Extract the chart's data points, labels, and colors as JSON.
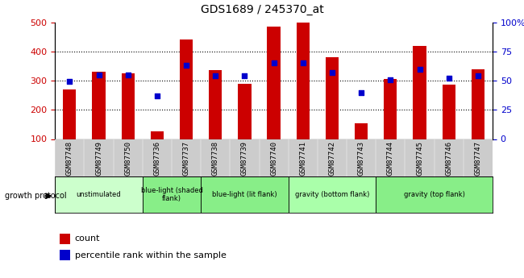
{
  "title": "GDS1689 / 245370_at",
  "samples": [
    "GSM87748",
    "GSM87749",
    "GSM87750",
    "GSM87736",
    "GSM87737",
    "GSM87738",
    "GSM87739",
    "GSM87740",
    "GSM87741",
    "GSM87742",
    "GSM87743",
    "GSM87744",
    "GSM87745",
    "GSM87746",
    "GSM87747"
  ],
  "counts": [
    270,
    330,
    325,
    125,
    440,
    335,
    290,
    485,
    500,
    380,
    155,
    305,
    420,
    285,
    340
  ],
  "percentiles": [
    49,
    55,
    55,
    37,
    63,
    54,
    54,
    65,
    65,
    57,
    40,
    51,
    60,
    52,
    54
  ],
  "groups": [
    {
      "label": "unstimulated",
      "start": 0,
      "end": 3,
      "color": "#ccffcc"
    },
    {
      "label": "blue-light (shaded\nflank)",
      "start": 3,
      "end": 5,
      "color": "#88ee88"
    },
    {
      "label": "blue-light (lit flank)",
      "start": 5,
      "end": 8,
      "color": "#88ee88"
    },
    {
      "label": "gravity (bottom flank)",
      "start": 8,
      "end": 11,
      "color": "#aaffaa"
    },
    {
      "label": "gravity (top flank)",
      "start": 11,
      "end": 15,
      "color": "#88ee88"
    }
  ],
  "bar_color": "#cc0000",
  "dot_color": "#0000cc",
  "ylim_left": [
    100,
    500
  ],
  "ylim_right": [
    0,
    100
  ],
  "yticks_left": [
    100,
    200,
    300,
    400,
    500
  ],
  "yticks_right": [
    0,
    25,
    50,
    75,
    100
  ],
  "ylabel_left_color": "#cc0000",
  "ylabel_right_color": "#0000cc",
  "bar_width": 0.45,
  "legend_count_label": "count",
  "legend_pct_label": "percentile rank within the sample",
  "growth_protocol_label": "growth protocol"
}
